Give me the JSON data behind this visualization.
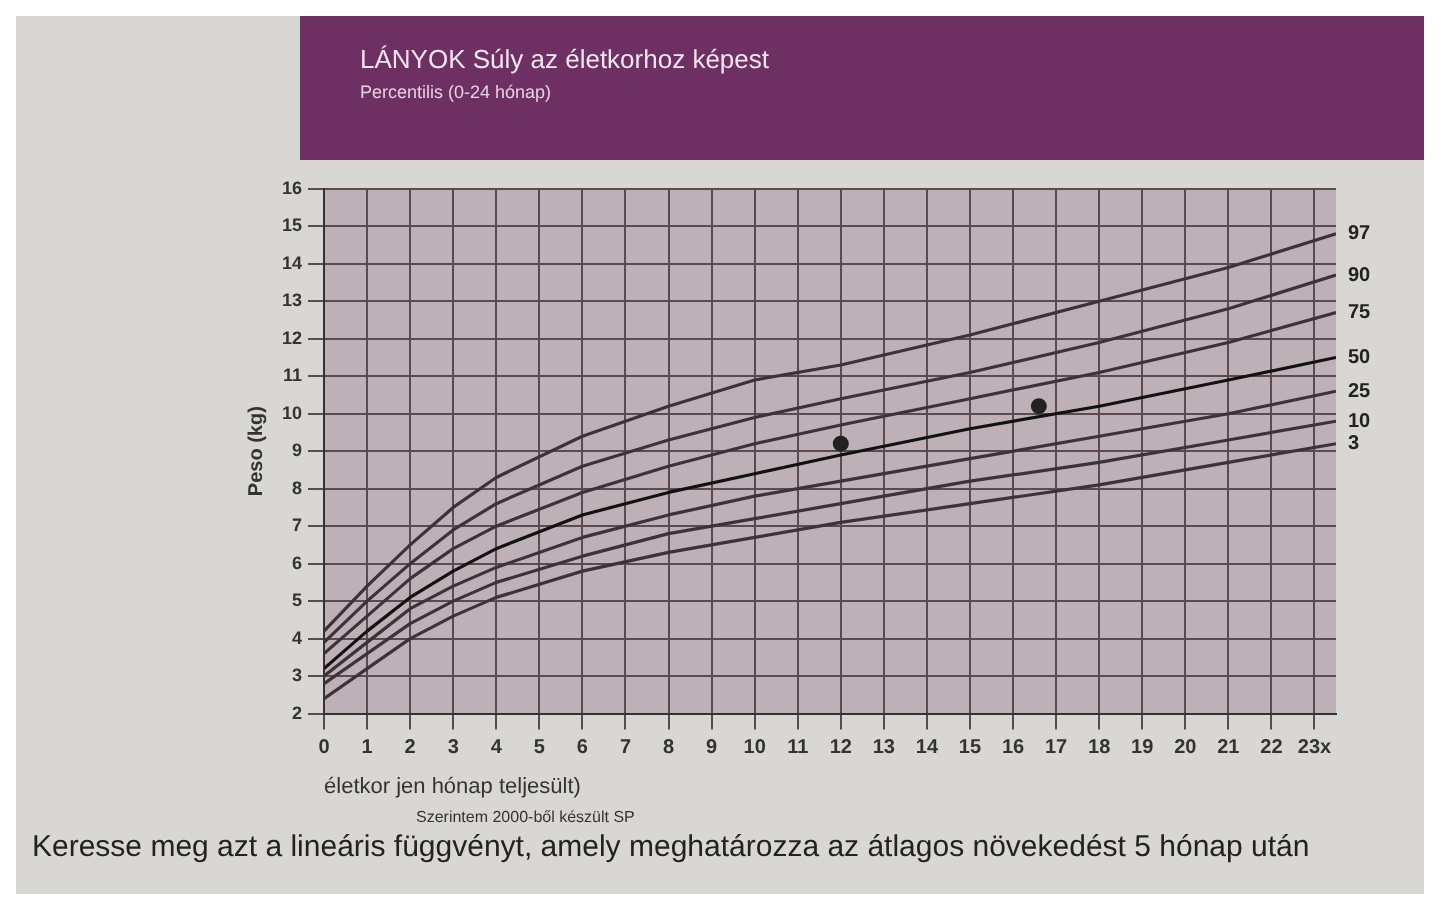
{
  "chart_data": {
    "type": "line",
    "title": "LÁNYOK Súly az életkorhoz képest",
    "subtitle": "Percentilis (0-24 hónap)",
    "xlabel": "életkor jen hónap teljesült)",
    "ylabel": "Peso (kg)",
    "annotations": [
      "Szerintem 2000-ből készült SP",
      "Keresse meg azt a lineáris függvényt, amely meghatározza az átlagos növekedést 5 hónap után"
    ],
    "x": [
      0,
      1,
      2,
      3,
      4,
      6,
      8,
      10,
      12,
      15,
      18,
      21,
      23.5
    ],
    "series": [
      {
        "name": "97",
        "color": "#3a3438",
        "values": [
          4.2,
          5.4,
          6.5,
          7.5,
          8.3,
          9.4,
          10.2,
          10.9,
          11.3,
          12.1,
          13.0,
          13.9,
          14.8
        ]
      },
      {
        "name": "90",
        "color": "#3a3438",
        "values": [
          3.9,
          5.0,
          6.0,
          6.9,
          7.6,
          8.6,
          9.3,
          9.9,
          10.4,
          11.1,
          11.9,
          12.8,
          13.7
        ]
      },
      {
        "name": "75",
        "color": "#3a3438",
        "values": [
          3.6,
          4.6,
          5.6,
          6.4,
          7.0,
          7.9,
          8.6,
          9.2,
          9.7,
          10.4,
          11.1,
          11.9,
          12.7
        ]
      },
      {
        "name": "50",
        "color": "#111111",
        "values": [
          3.2,
          4.2,
          5.1,
          5.8,
          6.4,
          7.3,
          7.9,
          8.4,
          8.9,
          9.6,
          10.2,
          10.9,
          11.5
        ]
      },
      {
        "name": "25",
        "color": "#3a3438",
        "values": [
          3.0,
          3.9,
          4.8,
          5.4,
          5.9,
          6.7,
          7.3,
          7.8,
          8.2,
          8.8,
          9.4,
          10.0,
          10.6
        ]
      },
      {
        "name": "10",
        "color": "#3a3438",
        "values": [
          2.8,
          3.6,
          4.4,
          5.0,
          5.5,
          6.2,
          6.8,
          7.2,
          7.6,
          8.2,
          8.7,
          9.3,
          9.8
        ]
      },
      {
        "name": "3",
        "color": "#3a3438",
        "values": [
          2.4,
          3.2,
          4.0,
          4.6,
          5.1,
          5.8,
          6.3,
          6.7,
          7.1,
          7.6,
          8.1,
          8.7,
          9.2
        ]
      },
      {
        "type": "scatter",
        "marker": "circle",
        "color": "#222222",
        "x": [
          12,
          16.6
        ],
        "values": [
          9.2,
          10.2
        ]
      }
    ],
    "xlim": [
      0,
      23.5
    ],
    "xticks": [
      0,
      1,
      2,
      3,
      4,
      5,
      6,
      7,
      8,
      9,
      10,
      11,
      12,
      13,
      14,
      15,
      16,
      17,
      18,
      19,
      20,
      21,
      22,
      {
        "value": 23,
        "label": "23x"
      }
    ],
    "ylim": [
      2,
      16
    ],
    "yticks": [
      2,
      3,
      4,
      5,
      6,
      7,
      8,
      9,
      10,
      11,
      12,
      13,
      14,
      15,
      16
    ],
    "grid": true,
    "legend": false,
    "marker": "none",
    "line_style": "solid"
  }
}
